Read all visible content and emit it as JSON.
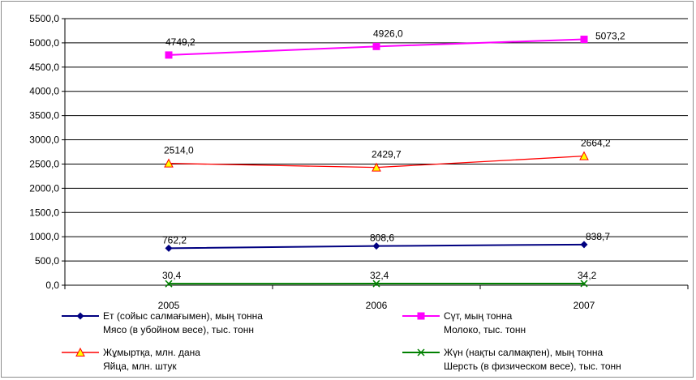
{
  "chart_data": {
    "type": "line",
    "categories": [
      "2005",
      "2006",
      "2007"
    ],
    "ylim": [
      0,
      5500
    ],
    "ytick_labels": [
      "0,0",
      "500,0",
      "1000,0",
      "1500,0",
      "2000,0",
      "2500,0",
      "3000,0",
      "3500,0",
      "4000,0",
      "4500,0",
      "5000,0",
      "5500,0"
    ],
    "grid": "horizontal",
    "legend_position": "bottom",
    "series": [
      {
        "name_line1": "Ет (сойыс салмағымен), мың тонна",
        "name_line2": "Мясо (в убойном весе), тыс. тонн",
        "values": [
          762.2,
          808.6,
          838.7
        ],
        "labels": [
          "762,2",
          "808,6",
          "838,7"
        ],
        "color": "#000080",
        "marker": "diamond"
      },
      {
        "name_line1": "Сүт, мың тонна",
        "name_line2": "Молоко, тыс. тонн",
        "values": [
          4749.2,
          4926.0,
          5073.2
        ],
        "labels": [
          "4749,2",
          "4926,0",
          "5073,2"
        ],
        "color": "#ff00ff",
        "marker": "square"
      },
      {
        "name_line1": "Жұмыртқа, млн. дана",
        "name_line2": "Яйца, млн. штук",
        "values": [
          2514.0,
          2429.7,
          2664.2
        ],
        "labels": [
          "2514,0",
          "2429,7",
          "2664,2"
        ],
        "color": "#ff0000",
        "marker": "triangle"
      },
      {
        "name_line1": "Жүн (нақты салмақпен),  мың тонна",
        "name_line2": "Шерсть (в физическом весе), тыс. тонн",
        "values": [
          30.4,
          32.4,
          34.2
        ],
        "labels": [
          "30,4",
          "32,4",
          "34,2"
        ],
        "color": "#008000",
        "marker": "x"
      }
    ]
  }
}
